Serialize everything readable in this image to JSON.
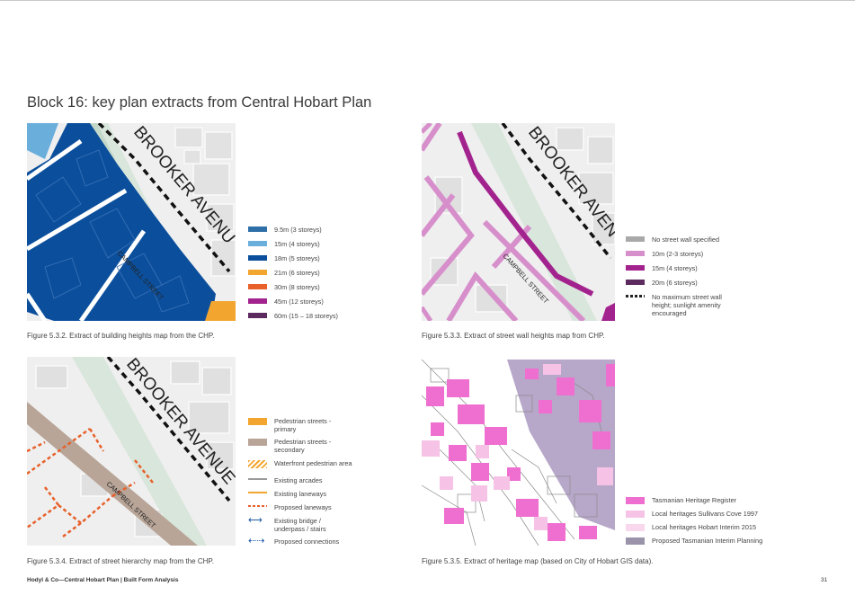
{
  "page": {
    "title": "Block 16: key plan extracts from Central Hobart Plan",
    "footer": "Hodyl & Co—Central Hobart Plan | Built Form Analysis",
    "page_number": "31"
  },
  "streets": {
    "brooker": "BROOKER AVENUE",
    "brooker_short": "BROOKER AVEN",
    "brooker_cut": "BROOKER AVENU",
    "campbell": "CAMPBELL STREET"
  },
  "fig1": {
    "caption": "Figure 5.3.2. Extract of building heights map from the CHP.",
    "legend": [
      {
        "label": "9.5m (3 storeys)",
        "color": "#2e6fa8"
      },
      {
        "label": "15m (4 storeys)",
        "color": "#6aaedc"
      },
      {
        "label": "18m (5 storeys)",
        "color": "#0b4f9c"
      },
      {
        "label": "21m (6 storeys)",
        "color": "#f2a630"
      },
      {
        "label": "30m (8 storeys)",
        "color": "#e8602a"
      },
      {
        "label": "45m (12 storeys)",
        "color": "#a3238e"
      },
      {
        "label": "60m (15 – 18 storeys)",
        "color": "#5c2a5e"
      }
    ]
  },
  "fig2": {
    "caption": "Figure 5.3.3. Extract of street wall heights map from CHP.",
    "legend": [
      {
        "label": "No street wall specified",
        "color": "#a9a9a9"
      },
      {
        "label": "10m (2-3 storeys)",
        "color": "#d78fcb"
      },
      {
        "label": "15m (4 storeys)",
        "color": "#a3238e"
      },
      {
        "label": "20m (6 storeys)",
        "color": "#5c2a5e"
      },
      {
        "label": "No maximum street wall height; sunlight amenity encouraged",
        "color": "#222222"
      }
    ]
  },
  "fig3": {
    "caption": "Figure 5.3.4. Extract of street hierarchy map from the CHP.",
    "legend": [
      {
        "label": "Pedestrian streets - primary",
        "color": "#f2a630"
      },
      {
        "label": "Pedestrian streets - secondary",
        "color": "#b8a598"
      },
      {
        "label": "Waterfront pedestrian area",
        "color": "#f2a630"
      },
      {
        "label": "Existing arcades",
        "color": "#9a9a9a"
      },
      {
        "label": "Existing laneways",
        "color": "#f2a630"
      },
      {
        "label": "Proposed laneways",
        "color": "#e8602a"
      },
      {
        "label": "Existing bridge / underpass / stairs",
        "color": "#1f5aa6"
      },
      {
        "label": "Proposed connections",
        "color": "#1f5aa6"
      }
    ]
  },
  "fig4": {
    "caption": "Figure 5.3.5. Extract of heritage map (based on City of Hobart GIS data).",
    "legend": [
      {
        "label": "Tasmanian Heritage Register",
        "color": "#ee6fcf"
      },
      {
        "label": "Local heritages Sullivans Cove 1997",
        "color": "#f6c3e6"
      },
      {
        "label": "Local heritages Hobart Interim 2015",
        "color": "#f9d8ee"
      },
      {
        "label": "Proposed Tasmanian Interim Planning",
        "color": "#9b93a9"
      }
    ]
  }
}
